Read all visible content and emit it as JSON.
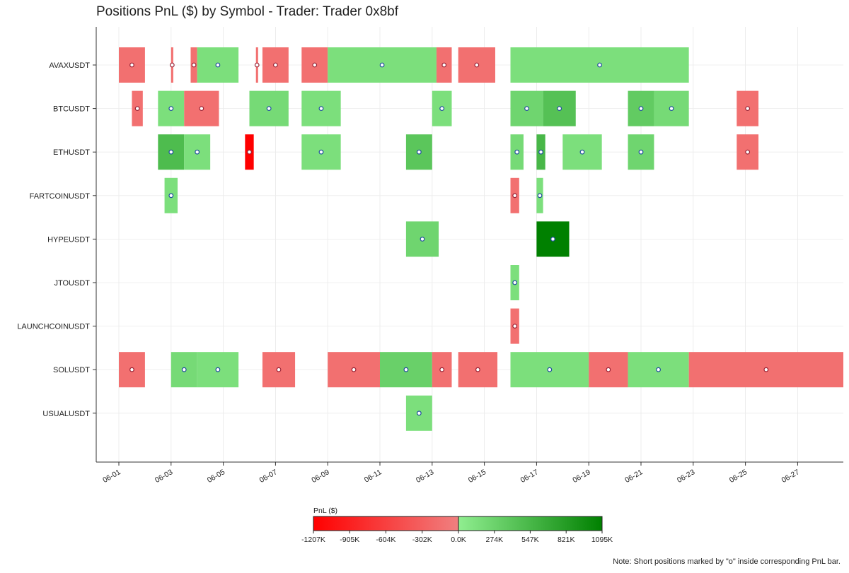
{
  "chart_data": {
    "type": "timeline",
    "title": "Positions PnL ($) by Symbol - Trader: Trader 0x8bf",
    "symbols": [
      "AVAXUSDT",
      "BTCUSDT",
      "ETHUSDT",
      "FARTCOINUSDT",
      "HYPEUSDT",
      "JTOUSDT",
      "LAUNCHCOINUSDT",
      "SOLUSDT",
      "USUALUSDT"
    ],
    "x_range": [
      "2025-05-31T12:00",
      "2025-06-29T00:00"
    ],
    "x_ticks": [
      "06-01",
      "06-03",
      "06-05",
      "06-07",
      "06-09",
      "06-11",
      "06-13",
      "06-15",
      "06-17",
      "06-19",
      "06-21",
      "06-23",
      "06-25",
      "06-27"
    ],
    "colorbar": {
      "label": "PnL ($)",
      "min": -1207,
      "max": 1095,
      "unit": "K",
      "ticks": [
        "-1207K",
        "-905K",
        "-604K",
        "-302K",
        "0.0K",
        "274K",
        "547K",
        "821K",
        "1095K"
      ],
      "tick_values": [
        -1207,
        -905,
        -604,
        -302,
        0,
        274,
        547,
        821,
        1095
      ]
    },
    "note": "Note: Short positions marked by \"o\" inside corresponding PnL bar.",
    "positions": [
      {
        "symbol": "AVAXUSDT",
        "start": "06-01 00:00",
        "end": "06-02 00:00",
        "pnl": -150
      },
      {
        "symbol": "AVAXUSDT",
        "start": "06-03 00:00",
        "end": "06-03 02:00",
        "pnl": -150
      },
      {
        "symbol": "AVAXUSDT",
        "start": "06-03 18:00",
        "end": "06-04 00:00",
        "pnl": -150
      },
      {
        "symbol": "AVAXUSDT",
        "start": "06-04 00:00",
        "end": "06-05 14:00",
        "pnl": 150
      },
      {
        "symbol": "AVAXUSDT",
        "start": "06-06 06:00",
        "end": "06-06 08:00",
        "pnl": -150
      },
      {
        "symbol": "AVAXUSDT",
        "start": "06-06 12:00",
        "end": "06-07 12:00",
        "pnl": -150
      },
      {
        "symbol": "AVAXUSDT",
        "start": "06-08 00:00",
        "end": "06-09 00:00",
        "pnl": -150
      },
      {
        "symbol": "AVAXUSDT",
        "start": "06-09 00:00",
        "end": "06-13 04:00",
        "pnl": 150
      },
      {
        "symbol": "AVAXUSDT",
        "start": "06-13 04:00",
        "end": "06-13 18:00",
        "pnl": -150
      },
      {
        "symbol": "AVAXUSDT",
        "start": "06-14 00:00",
        "end": "06-15 10:00",
        "pnl": -150
      },
      {
        "symbol": "AVAXUSDT",
        "start": "06-16 00:00",
        "end": "06-22 20:00",
        "pnl": 150
      },
      {
        "symbol": "BTCUSDT",
        "start": "06-01 12:00",
        "end": "06-01 22:00",
        "pnl": -150
      },
      {
        "symbol": "BTCUSDT",
        "start": "06-02 12:00",
        "end": "06-03 12:00",
        "pnl": 150
      },
      {
        "symbol": "BTCUSDT",
        "start": "06-03 12:00",
        "end": "06-04 20:00",
        "pnl": -150
      },
      {
        "symbol": "BTCUSDT",
        "start": "06-06 00:00",
        "end": "06-07 12:00",
        "pnl": 200
      },
      {
        "symbol": "BTCUSDT",
        "start": "06-08 00:00",
        "end": "06-09 12:00",
        "pnl": 150
      },
      {
        "symbol": "BTCUSDT",
        "start": "06-13 00:00",
        "end": "06-13 18:00",
        "pnl": 150
      },
      {
        "symbol": "BTCUSDT",
        "start": "06-16 00:00",
        "end": "06-17 06:00",
        "pnl": 250
      },
      {
        "symbol": "BTCUSDT",
        "start": "06-17 06:00",
        "end": "06-18 12:00",
        "pnl": 450
      },
      {
        "symbol": "BTCUSDT",
        "start": "06-20 12:00",
        "end": "06-21 12:00",
        "pnl": 350
      },
      {
        "symbol": "BTCUSDT",
        "start": "06-21 12:00",
        "end": "06-22 20:00",
        "pnl": 200
      },
      {
        "symbol": "BTCUSDT",
        "start": "06-24 16:00",
        "end": "06-25 12:00",
        "pnl": -150
      },
      {
        "symbol": "ETHUSDT",
        "start": "06-02 12:00",
        "end": "06-03 12:00",
        "pnl": 500
      },
      {
        "symbol": "ETHUSDT",
        "start": "06-03 12:00",
        "end": "06-04 12:00",
        "pnl": 150
      },
      {
        "symbol": "ETHUSDT",
        "start": "06-05 20:00",
        "end": "06-06 04:00",
        "pnl": -1207
      },
      {
        "symbol": "ETHUSDT",
        "start": "06-08 00:00",
        "end": "06-09 12:00",
        "pnl": 150
      },
      {
        "symbol": "ETHUSDT",
        "start": "06-12 00:00",
        "end": "06-13 00:00",
        "pnl": 400
      },
      {
        "symbol": "ETHUSDT",
        "start": "06-16 00:00",
        "end": "06-16 12:00",
        "pnl": 200
      },
      {
        "symbol": "ETHUSDT",
        "start": "06-17 00:00",
        "end": "06-17 08:00",
        "pnl": 550
      },
      {
        "symbol": "ETHUSDT",
        "start": "06-18 00:00",
        "end": "06-19 12:00",
        "pnl": 150
      },
      {
        "symbol": "ETHUSDT",
        "start": "06-20 12:00",
        "end": "06-21 12:00",
        "pnl": 250
      },
      {
        "symbol": "ETHUSDT",
        "start": "06-24 16:00",
        "end": "06-25 12:00",
        "pnl": -150
      },
      {
        "symbol": "FARTCOINUSDT",
        "start": "06-02 18:00",
        "end": "06-03 06:00",
        "pnl": 150
      },
      {
        "symbol": "FARTCOINUSDT",
        "start": "06-16 00:00",
        "end": "06-16 08:00",
        "pnl": -150
      },
      {
        "symbol": "FARTCOINUSDT",
        "start": "06-17 00:00",
        "end": "06-17 06:00",
        "pnl": 150
      },
      {
        "symbol": "HYPEUSDT",
        "start": "06-12 00:00",
        "end": "06-13 06:00",
        "pnl": 250
      },
      {
        "symbol": "HYPEUSDT",
        "start": "06-17 00:00",
        "end": "06-18 06:00",
        "pnl": 1095
      },
      {
        "symbol": "JTOUSDT",
        "start": "06-16 00:00",
        "end": "06-16 08:00",
        "pnl": 150
      },
      {
        "symbol": "LAUNCHCOINUSDT",
        "start": "06-16 00:00",
        "end": "06-16 08:00",
        "pnl": -150
      },
      {
        "symbol": "SOLUSDT",
        "start": "06-01 00:00",
        "end": "06-02 00:00",
        "pnl": -150
      },
      {
        "symbol": "SOLUSDT",
        "start": "06-03 00:00",
        "end": "06-04 00:00",
        "pnl": 200
      },
      {
        "symbol": "SOLUSDT",
        "start": "06-04 00:00",
        "end": "06-05 14:00",
        "pnl": 150
      },
      {
        "symbol": "SOLUSDT",
        "start": "06-06 12:00",
        "end": "06-07 18:00",
        "pnl": -150
      },
      {
        "symbol": "SOLUSDT",
        "start": "06-09 00:00",
        "end": "06-11 00:00",
        "pnl": -150
      },
      {
        "symbol": "SOLUSDT",
        "start": "06-11 00:00",
        "end": "06-13 00:00",
        "pnl": 300
      },
      {
        "symbol": "SOLUSDT",
        "start": "06-13 00:00",
        "end": "06-13 18:00",
        "pnl": -150
      },
      {
        "symbol": "SOLUSDT",
        "start": "06-14 00:00",
        "end": "06-15 12:00",
        "pnl": -150
      },
      {
        "symbol": "SOLUSDT",
        "start": "06-16 00:00",
        "end": "06-19 00:00",
        "pnl": 150
      },
      {
        "symbol": "SOLUSDT",
        "start": "06-19 00:00",
        "end": "06-20 12:00",
        "pnl": -150
      },
      {
        "symbol": "SOLUSDT",
        "start": "06-20 12:00",
        "end": "06-22 20:00",
        "pnl": 150
      },
      {
        "symbol": "SOLUSDT",
        "start": "06-22 20:00",
        "end": "06-29 00:00",
        "pnl": -150
      },
      {
        "symbol": "USUALUSDT",
        "start": "06-12 00:00",
        "end": "06-13 00:00",
        "pnl": 150
      }
    ]
  }
}
